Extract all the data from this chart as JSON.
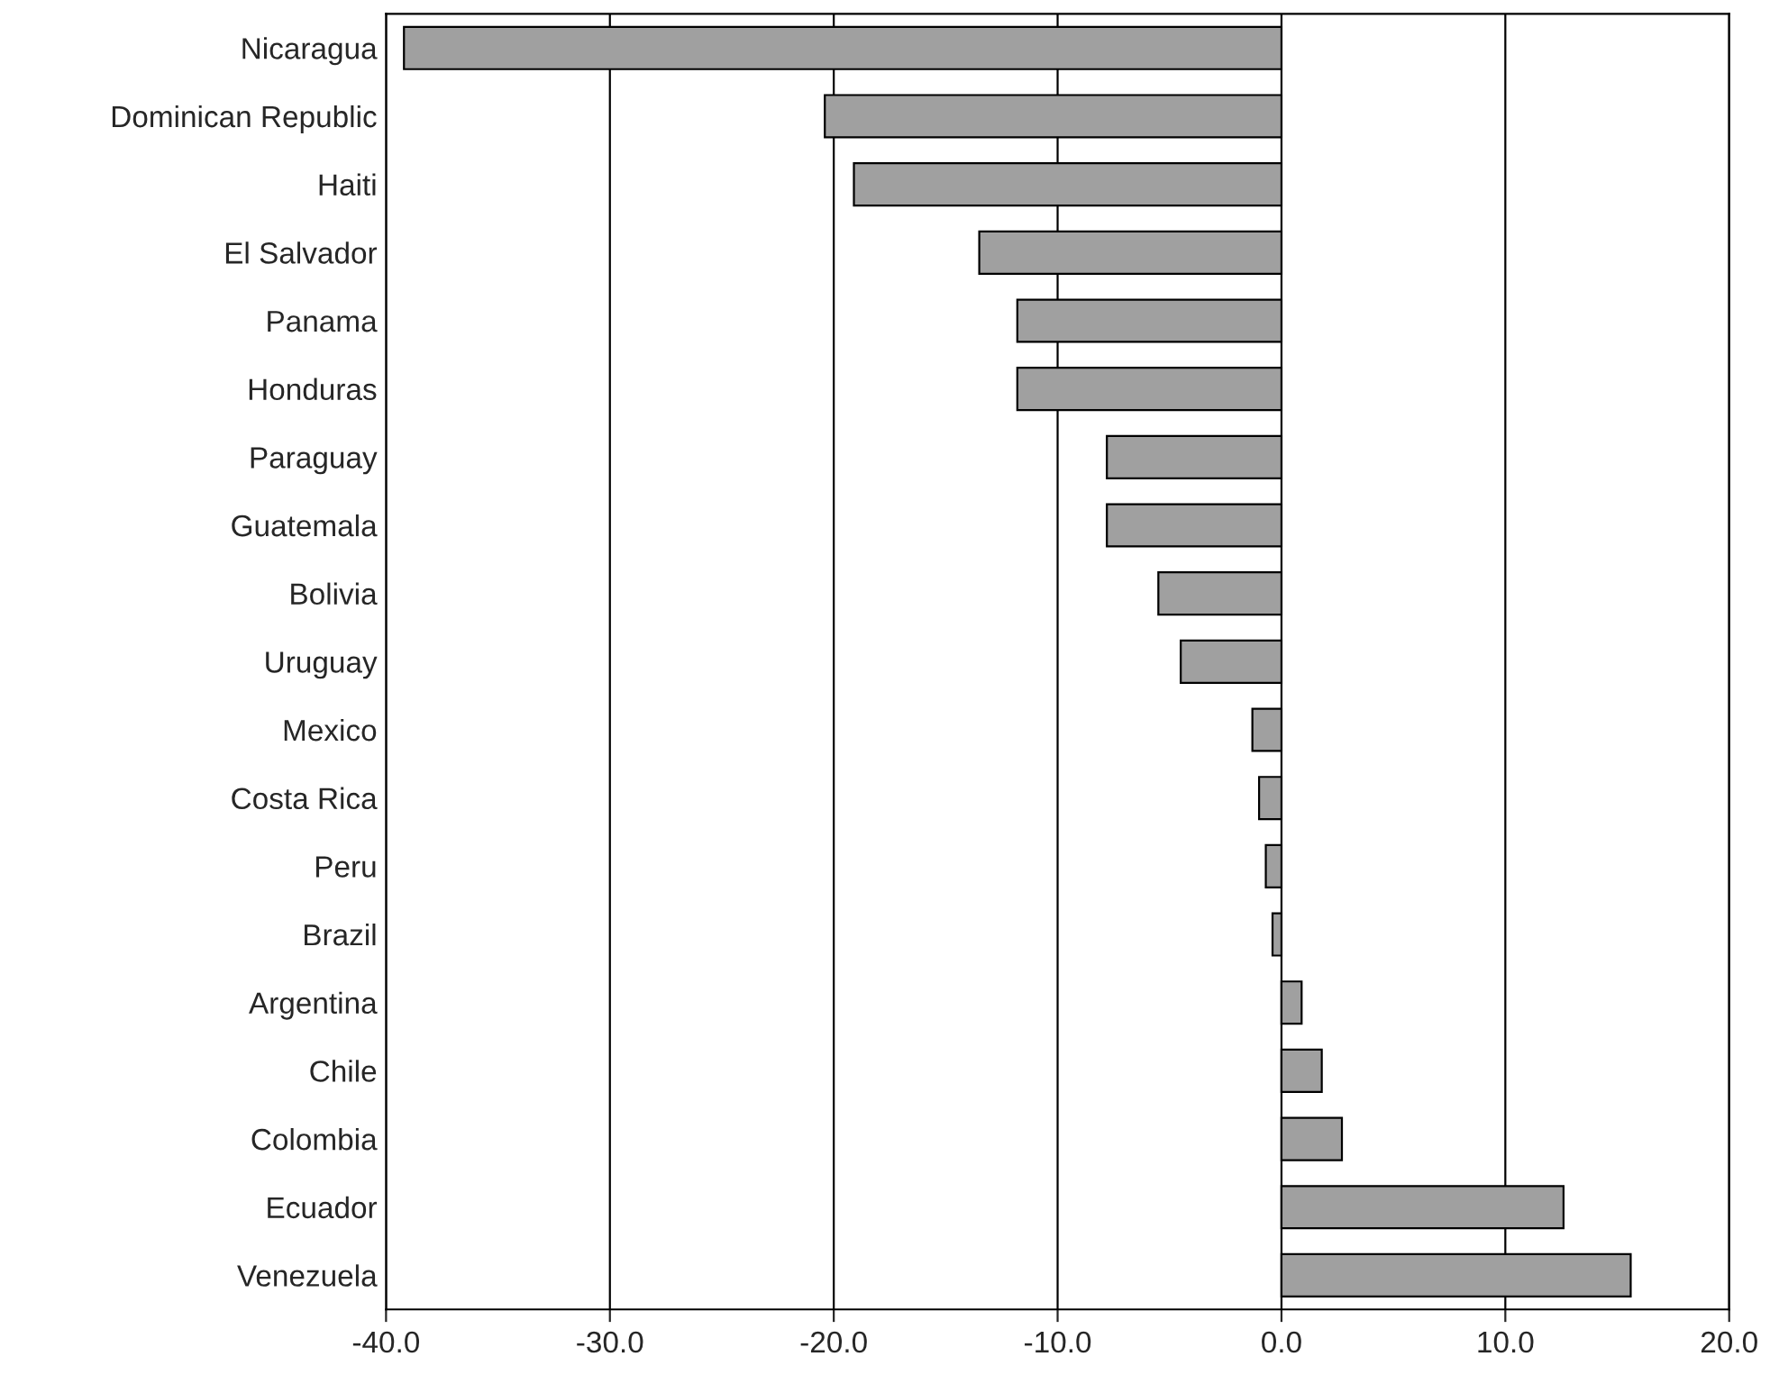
{
  "chart_data": {
    "type": "bar",
    "orientation": "horizontal",
    "categories": [
      "Nicaragua",
      "Dominican Republic",
      "Haiti",
      "El Salvador",
      "Panama",
      "Honduras",
      "Paraguay",
      "Guatemala",
      "Bolivia",
      "Uruguay",
      "Mexico",
      "Costa Rica",
      "Peru",
      "Brazil",
      "Argentina",
      "Chile",
      "Colombia",
      "Ecuador",
      "Venezuela"
    ],
    "values": [
      -39.2,
      -20.4,
      -19.1,
      -13.5,
      -11.8,
      -11.8,
      -7.8,
      -7.8,
      -5.5,
      -4.5,
      -1.3,
      -1.0,
      -0.7,
      -0.4,
      0.9,
      1.8,
      2.7,
      12.6,
      15.6
    ],
    "color": "#a0a0a0",
    "xlim": [
      -40,
      20
    ],
    "xticks": [
      {
        "value": -40,
        "label": "-40.0"
      },
      {
        "value": -30,
        "label": "-30.0"
      },
      {
        "value": -20,
        "label": "-20.0"
      },
      {
        "value": -10,
        "label": "-10.0"
      },
      {
        "value": 0,
        "label": "0.0"
      },
      {
        "value": 10,
        "label": "10.0"
      },
      {
        "value": 20,
        "label": "20.0"
      }
    ],
    "grid": "x"
  }
}
